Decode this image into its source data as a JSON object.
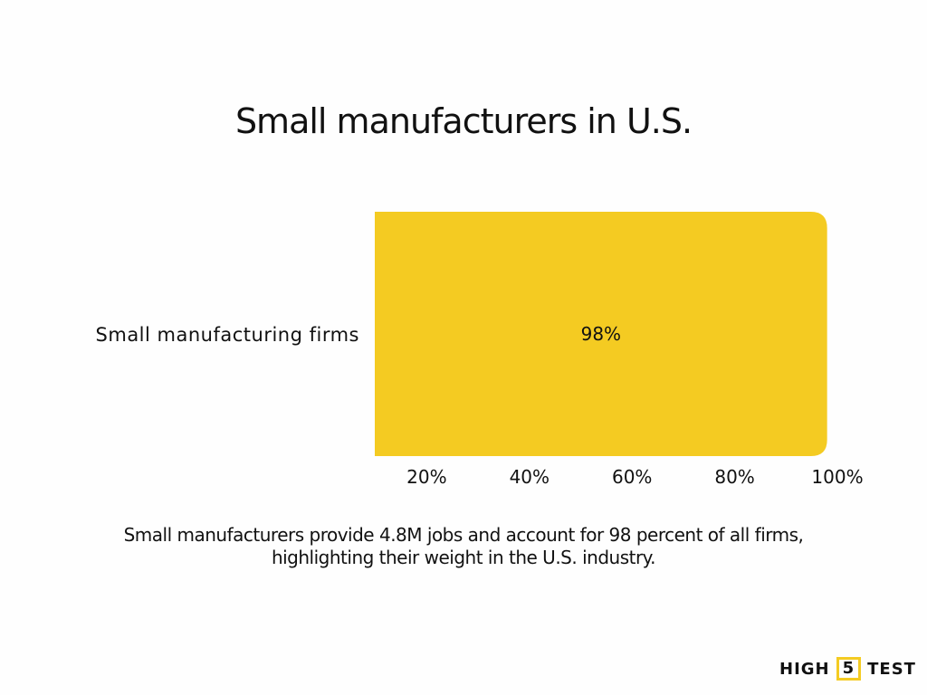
{
  "chart_data": {
    "type": "bar",
    "orientation": "horizontal",
    "title": "Small manufacturers in U.S.",
    "categories": [
      "Small manufacturing firms"
    ],
    "values": [
      98
    ],
    "data_labels": [
      "98%"
    ],
    "xticks": [
      20,
      40,
      60,
      80,
      100
    ],
    "xtick_labels": [
      "20%",
      "40%",
      "60%",
      "80%",
      "100%"
    ],
    "xlim": [
      0,
      100
    ],
    "grid": false,
    "bar_color": "#f4cb22"
  },
  "caption": "Small manufacturers provide 4.8M jobs and account for 98 percent of all firms, highlighting their weight in the U.S. industry.",
  "logo": {
    "left": "HIGH",
    "mid": "5",
    "right": "TEST"
  }
}
